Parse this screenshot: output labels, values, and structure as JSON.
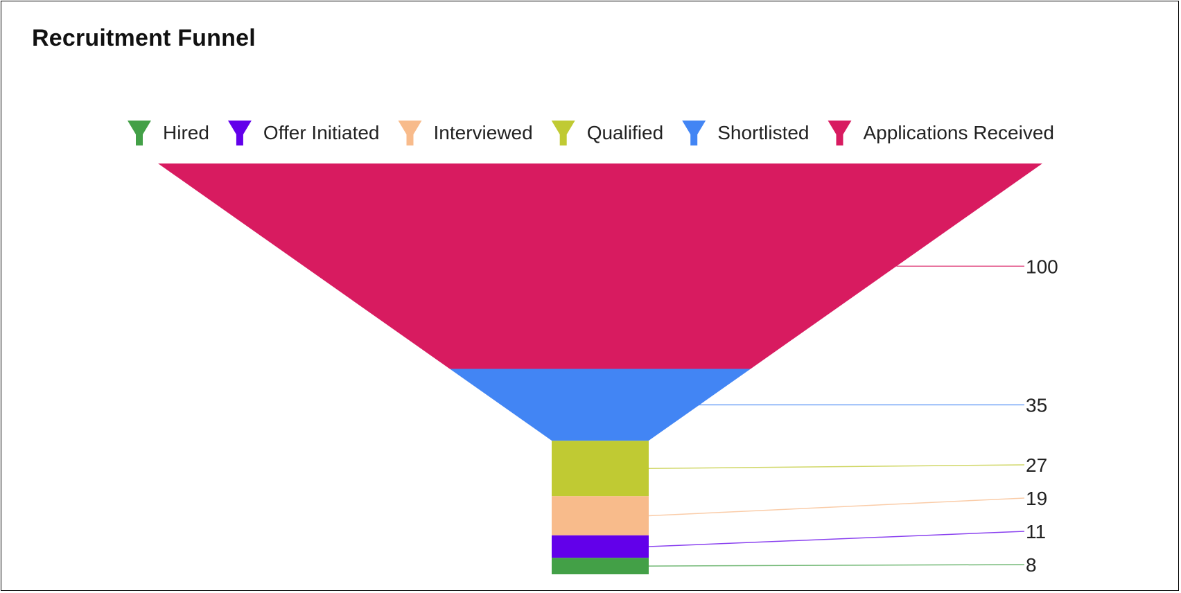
{
  "title": "Recruitment Funnel",
  "chart_data": {
    "type": "funnel",
    "legend_position": "top",
    "stages": [
      {
        "name": "Applications Received",
        "value": 100,
        "color": "#D81B60"
      },
      {
        "name": "Shortlisted",
        "value": 35,
        "color": "#4285F4"
      },
      {
        "name": "Qualified",
        "value": 27,
        "color": "#C0CA33"
      },
      {
        "name": "Interviewed",
        "value": 19,
        "color": "#F8BB8B"
      },
      {
        "name": "Offer Initiated",
        "value": 11,
        "color": "#6200EA"
      },
      {
        "name": "Hired",
        "value": 8,
        "color": "#43A047"
      }
    ],
    "legend_order": [
      "Hired",
      "Offer Initiated",
      "Interviewed",
      "Qualified",
      "Shortlisted",
      "Applications Received"
    ]
  }
}
